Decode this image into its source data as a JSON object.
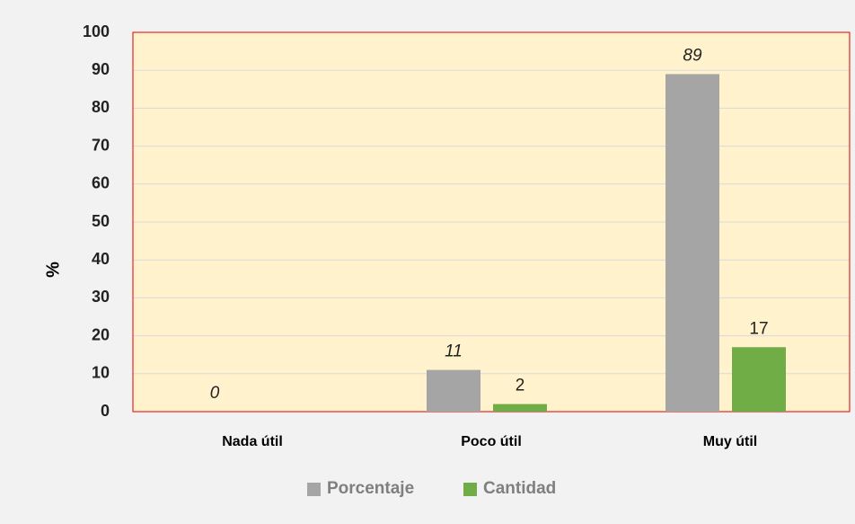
{
  "chart_data": {
    "type": "bar",
    "y_label": "%",
    "categories": [
      "Nada útil",
      "Poco útil",
      "Muy útil"
    ],
    "series": [
      {
        "name": "Porcentaje",
        "color": "#a5a5a5",
        "values": [
          0,
          11,
          89
        ],
        "value_labels": [
          "0",
          "11",
          "89"
        ]
      },
      {
        "name": "Cantidad",
        "color": "#70ad47",
        "values": [
          0,
          2,
          17
        ],
        "value_labels": [
          null,
          "2",
          "17"
        ]
      }
    ],
    "ylim": [
      0,
      100
    ],
    "yticks": [
      0,
      10,
      20,
      30,
      40,
      50,
      60,
      70,
      80,
      90,
      100
    ],
    "grid": true,
    "legend": "bottom"
  }
}
